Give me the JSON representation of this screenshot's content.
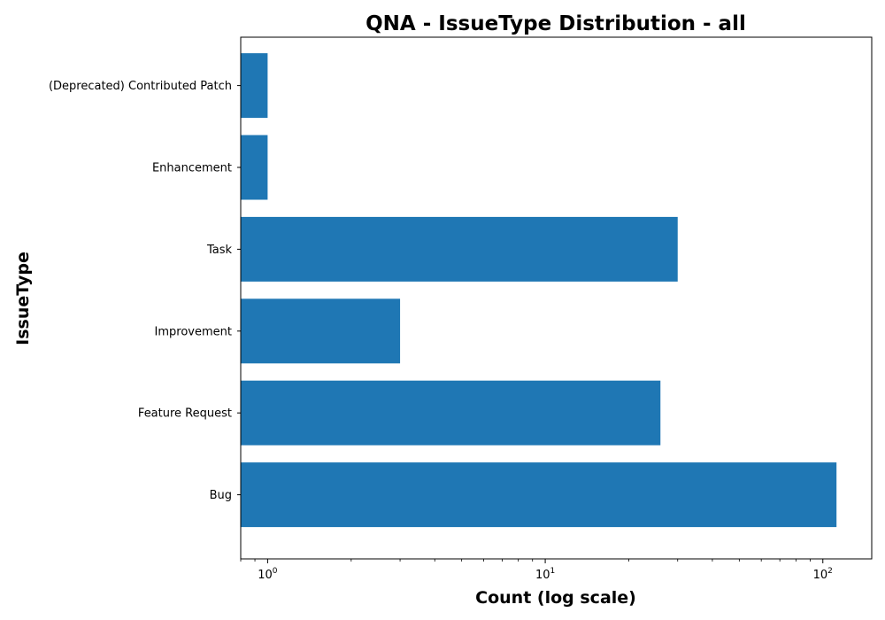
{
  "chart_data": {
    "type": "bar",
    "orientation": "horizontal",
    "title": "QNA - IssueType Distribution - all",
    "xlabel": "Count (log scale)",
    "ylabel": "IssueType",
    "x_scale": "log",
    "xlim": [
      0.8,
      150
    ],
    "x_major_ticks": [
      {
        "value": 1,
        "base": "10",
        "exp": "0"
      },
      {
        "value": 10,
        "base": "10",
        "exp": "1"
      },
      {
        "value": 100,
        "base": "10",
        "exp": "2"
      }
    ],
    "categories": [
      "(Deprecated) Contributed Patch",
      "Enhancement",
      "Task",
      "Improvement",
      "Feature Request",
      "Bug"
    ],
    "values": [
      1,
      1,
      30,
      3,
      26,
      112
    ],
    "bar_color": "#1f77b4",
    "grid": false
  }
}
